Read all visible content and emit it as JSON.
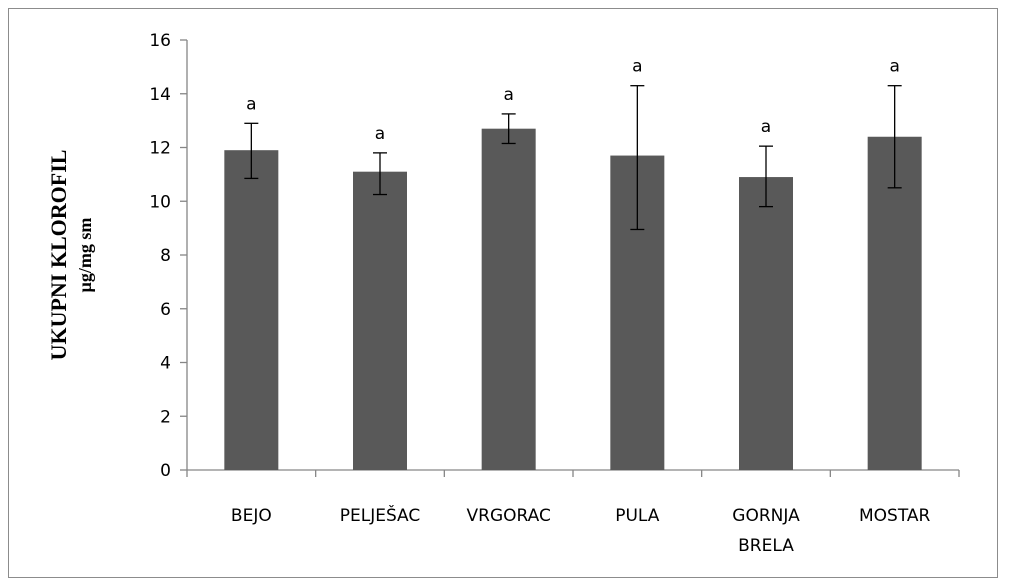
{
  "chart_data": {
    "type": "bar",
    "categories": [
      "BEJO",
      "PELJEŠAC",
      "VRGORAC",
      "PULA",
      [
        "GORNJA",
        "BRELA"
      ],
      "MOSTAR"
    ],
    "values": [
      11.9,
      11.1,
      12.7,
      11.7,
      10.9,
      12.4
    ],
    "errors": [
      [
        10.85,
        12.9
      ],
      [
        10.25,
        11.8
      ],
      [
        12.15,
        13.25
      ],
      [
        8.95,
        14.3
      ],
      [
        9.8,
        12.05
      ],
      [
        10.5,
        14.3
      ]
    ],
    "significance": [
      "a",
      "a",
      "a",
      "a",
      "a",
      "a"
    ],
    "ylabel": [
      "UKUPNI KLOROFIL",
      "µg/mg sm"
    ],
    "ylim": [
      0,
      16
    ],
    "yticks": [
      0,
      2,
      4,
      6,
      8,
      10,
      12,
      14,
      16
    ],
    "grid": false,
    "legend": "none",
    "colors": {
      "bar": "#595959",
      "axis": "#868686",
      "error": "#000000"
    }
  }
}
